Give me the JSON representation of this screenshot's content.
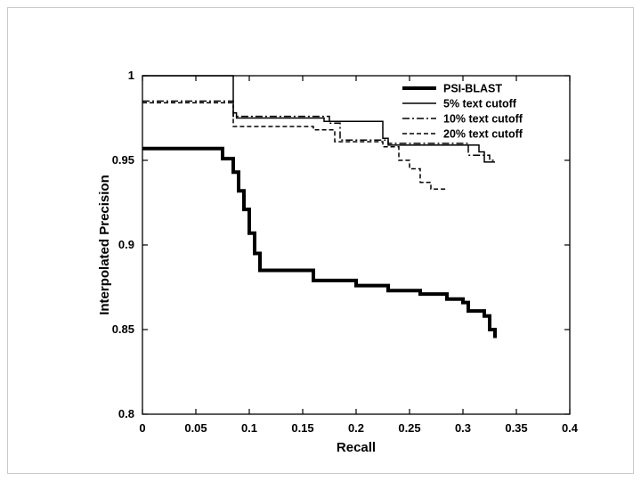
{
  "slide": {
    "background": "#ffffff",
    "border_color": "#c6ccc6"
  },
  "chart_data": {
    "type": "line",
    "title": "",
    "xlabel": "Recall",
    "ylabel": "Interpolated Precision",
    "xlim": [
      0,
      0.4
    ],
    "ylim": [
      0.8,
      1.0
    ],
    "xticks": [
      0,
      0.05,
      0.1,
      0.15,
      0.2,
      0.25,
      0.3,
      0.35,
      0.4
    ],
    "xtick_labels": [
      "0",
      "0.05",
      "0.1",
      "0.15",
      "0.2",
      "0.25",
      "0.3",
      "0.35",
      "0.4"
    ],
    "yticks": [
      0.8,
      0.85,
      0.9,
      0.95,
      1.0
    ],
    "ytick_labels": [
      "0.8",
      "0.85",
      "0.9",
      "0.95",
      "1"
    ],
    "grid": false,
    "legend_position": "top-right",
    "line_color": "#000000",
    "series": [
      {
        "name": "PSI-BLAST",
        "style": "thick-solid",
        "points": [
          [
            0,
            0.957
          ],
          [
            0.075,
            0.957
          ],
          [
            0.075,
            0.951
          ],
          [
            0.085,
            0.951
          ],
          [
            0.085,
            0.943
          ],
          [
            0.09,
            0.943
          ],
          [
            0.09,
            0.932
          ],
          [
            0.095,
            0.932
          ],
          [
            0.095,
            0.921
          ],
          [
            0.1,
            0.921
          ],
          [
            0.1,
            0.907
          ],
          [
            0.105,
            0.907
          ],
          [
            0.105,
            0.895
          ],
          [
            0.11,
            0.895
          ],
          [
            0.11,
            0.885
          ],
          [
            0.16,
            0.885
          ],
          [
            0.16,
            0.879
          ],
          [
            0.2,
            0.879
          ],
          [
            0.2,
            0.876
          ],
          [
            0.23,
            0.876
          ],
          [
            0.23,
            0.873
          ],
          [
            0.26,
            0.873
          ],
          [
            0.26,
            0.871
          ],
          [
            0.285,
            0.871
          ],
          [
            0.285,
            0.868
          ],
          [
            0.3,
            0.868
          ],
          [
            0.3,
            0.866
          ],
          [
            0.305,
            0.866
          ],
          [
            0.305,
            0.861
          ],
          [
            0.32,
            0.861
          ],
          [
            0.32,
            0.858
          ],
          [
            0.325,
            0.858
          ],
          [
            0.325,
            0.85
          ],
          [
            0.33,
            0.85
          ],
          [
            0.33,
            0.845
          ]
        ]
      },
      {
        "name": "5% text cutoff",
        "style": "solid",
        "points": [
          [
            0,
            1.0
          ],
          [
            0.085,
            1.0
          ],
          [
            0.085,
            0.978
          ],
          [
            0.088,
            0.978
          ],
          [
            0.088,
            0.975
          ],
          [
            0.17,
            0.975
          ],
          [
            0.17,
            0.973
          ],
          [
            0.225,
            0.973
          ],
          [
            0.225,
            0.963
          ],
          [
            0.23,
            0.963
          ],
          [
            0.23,
            0.959
          ],
          [
            0.315,
            0.959
          ],
          [
            0.315,
            0.955
          ],
          [
            0.32,
            0.955
          ],
          [
            0.32,
            0.949
          ],
          [
            0.33,
            0.949
          ]
        ]
      },
      {
        "name": "10% text cutoff",
        "style": "dashdot",
        "points": [
          [
            0,
            0.985
          ],
          [
            0.085,
            0.985
          ],
          [
            0.085,
            0.976
          ],
          [
            0.175,
            0.976
          ],
          [
            0.175,
            0.972
          ],
          [
            0.185,
            0.972
          ],
          [
            0.185,
            0.962
          ],
          [
            0.23,
            0.962
          ],
          [
            0.23,
            0.96
          ],
          [
            0.305,
            0.96
          ],
          [
            0.305,
            0.953
          ],
          [
            0.325,
            0.953
          ],
          [
            0.325,
            0.95
          ],
          [
            0.33,
            0.95
          ]
        ]
      },
      {
        "name": "20% text cutoff",
        "style": "dashed",
        "points": [
          [
            0,
            0.984
          ],
          [
            0.085,
            0.984
          ],
          [
            0.085,
            0.97
          ],
          [
            0.16,
            0.97
          ],
          [
            0.16,
            0.968
          ],
          [
            0.18,
            0.968
          ],
          [
            0.18,
            0.961
          ],
          [
            0.225,
            0.961
          ],
          [
            0.225,
            0.958
          ],
          [
            0.24,
            0.958
          ],
          [
            0.24,
            0.95
          ],
          [
            0.25,
            0.95
          ],
          [
            0.25,
            0.945
          ],
          [
            0.26,
            0.945
          ],
          [
            0.26,
            0.937
          ],
          [
            0.27,
            0.937
          ],
          [
            0.27,
            0.933
          ],
          [
            0.285,
            0.933
          ]
        ]
      }
    ]
  }
}
